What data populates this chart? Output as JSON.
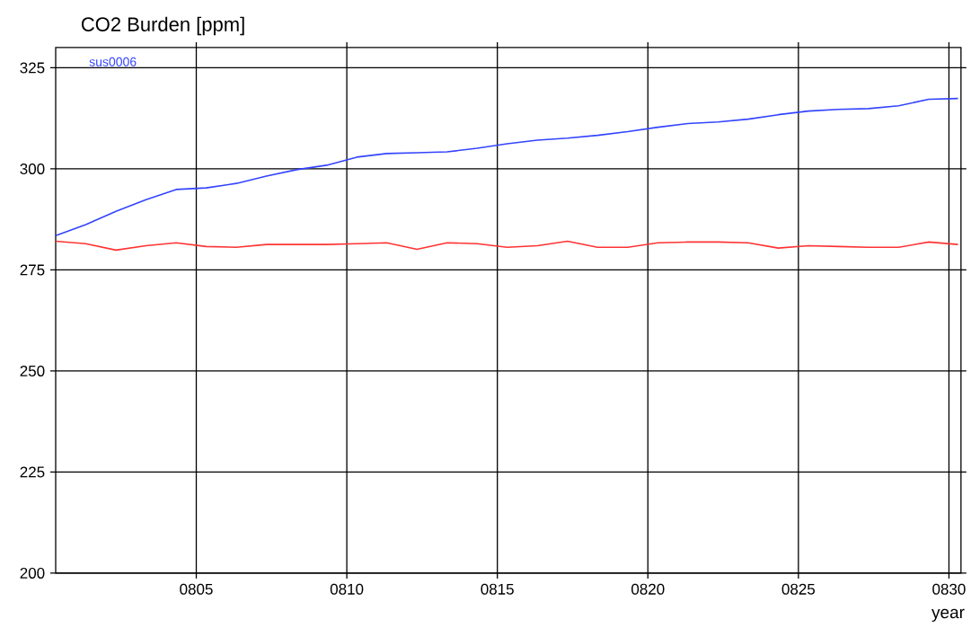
{
  "chart_data": {
    "type": "line",
    "title": "CO2 Burden [ppm]",
    "xlabel": "year",
    "x": [
      800.33,
      801.33,
      802.33,
      803.33,
      804.33,
      805.33,
      806.33,
      807.33,
      808.33,
      809.33,
      810.33,
      811.33,
      812.33,
      813.33,
      814.33,
      815.33,
      816.33,
      817.33,
      818.33,
      819.33,
      820.33,
      821.33,
      822.33,
      823.33,
      824.33,
      825.33,
      826.33,
      827.33,
      828.33,
      829.33,
      830.3
    ],
    "series": [
      {
        "name": "sus0006",
        "color": "#3344ff",
        "values": [
          283.5,
          286.2,
          289.5,
          292.4,
          294.9,
          295.3,
          296.4,
          298.2,
          299.8,
          300.9,
          302.9,
          303.8,
          304,
          304.2,
          305.1,
          306.2,
          307.1,
          307.6,
          308.3,
          309.2,
          310.3,
          311.2,
          311.6,
          312.3,
          313.4,
          314.3,
          314.7,
          314.9,
          315.6,
          317.2,
          317.4
        ]
      },
      {
        "color": "#ff3333",
        "values": [
          282.1,
          281.5,
          279.9,
          281,
          281.7,
          280.8,
          280.6,
          281.3,
          281.3,
          281.3,
          281.5,
          281.7,
          280.1,
          281.7,
          281.5,
          280.6,
          281,
          282.1,
          280.6,
          280.6,
          281.7,
          281.9,
          281.9,
          281.7,
          280.4,
          281,
          280.8,
          280.6,
          280.6,
          281.9,
          281.3
        ]
      }
    ],
    "xlim": [
      800.33,
      830.4
    ],
    "ylim": [
      200,
      330
    ],
    "xticks": [
      {
        "value": 805,
        "label": "0805"
      },
      {
        "value": 810,
        "label": "0810"
      },
      {
        "value": 815,
        "label": "0815"
      },
      {
        "value": 820,
        "label": "0820"
      },
      {
        "value": 825,
        "label": "0825"
      },
      {
        "value": 830,
        "label": "0830"
      }
    ],
    "yticks": [
      200,
      225,
      250,
      275,
      300,
      325
    ],
    "grid": true,
    "line_style": "solid",
    "marker": "none"
  }
}
